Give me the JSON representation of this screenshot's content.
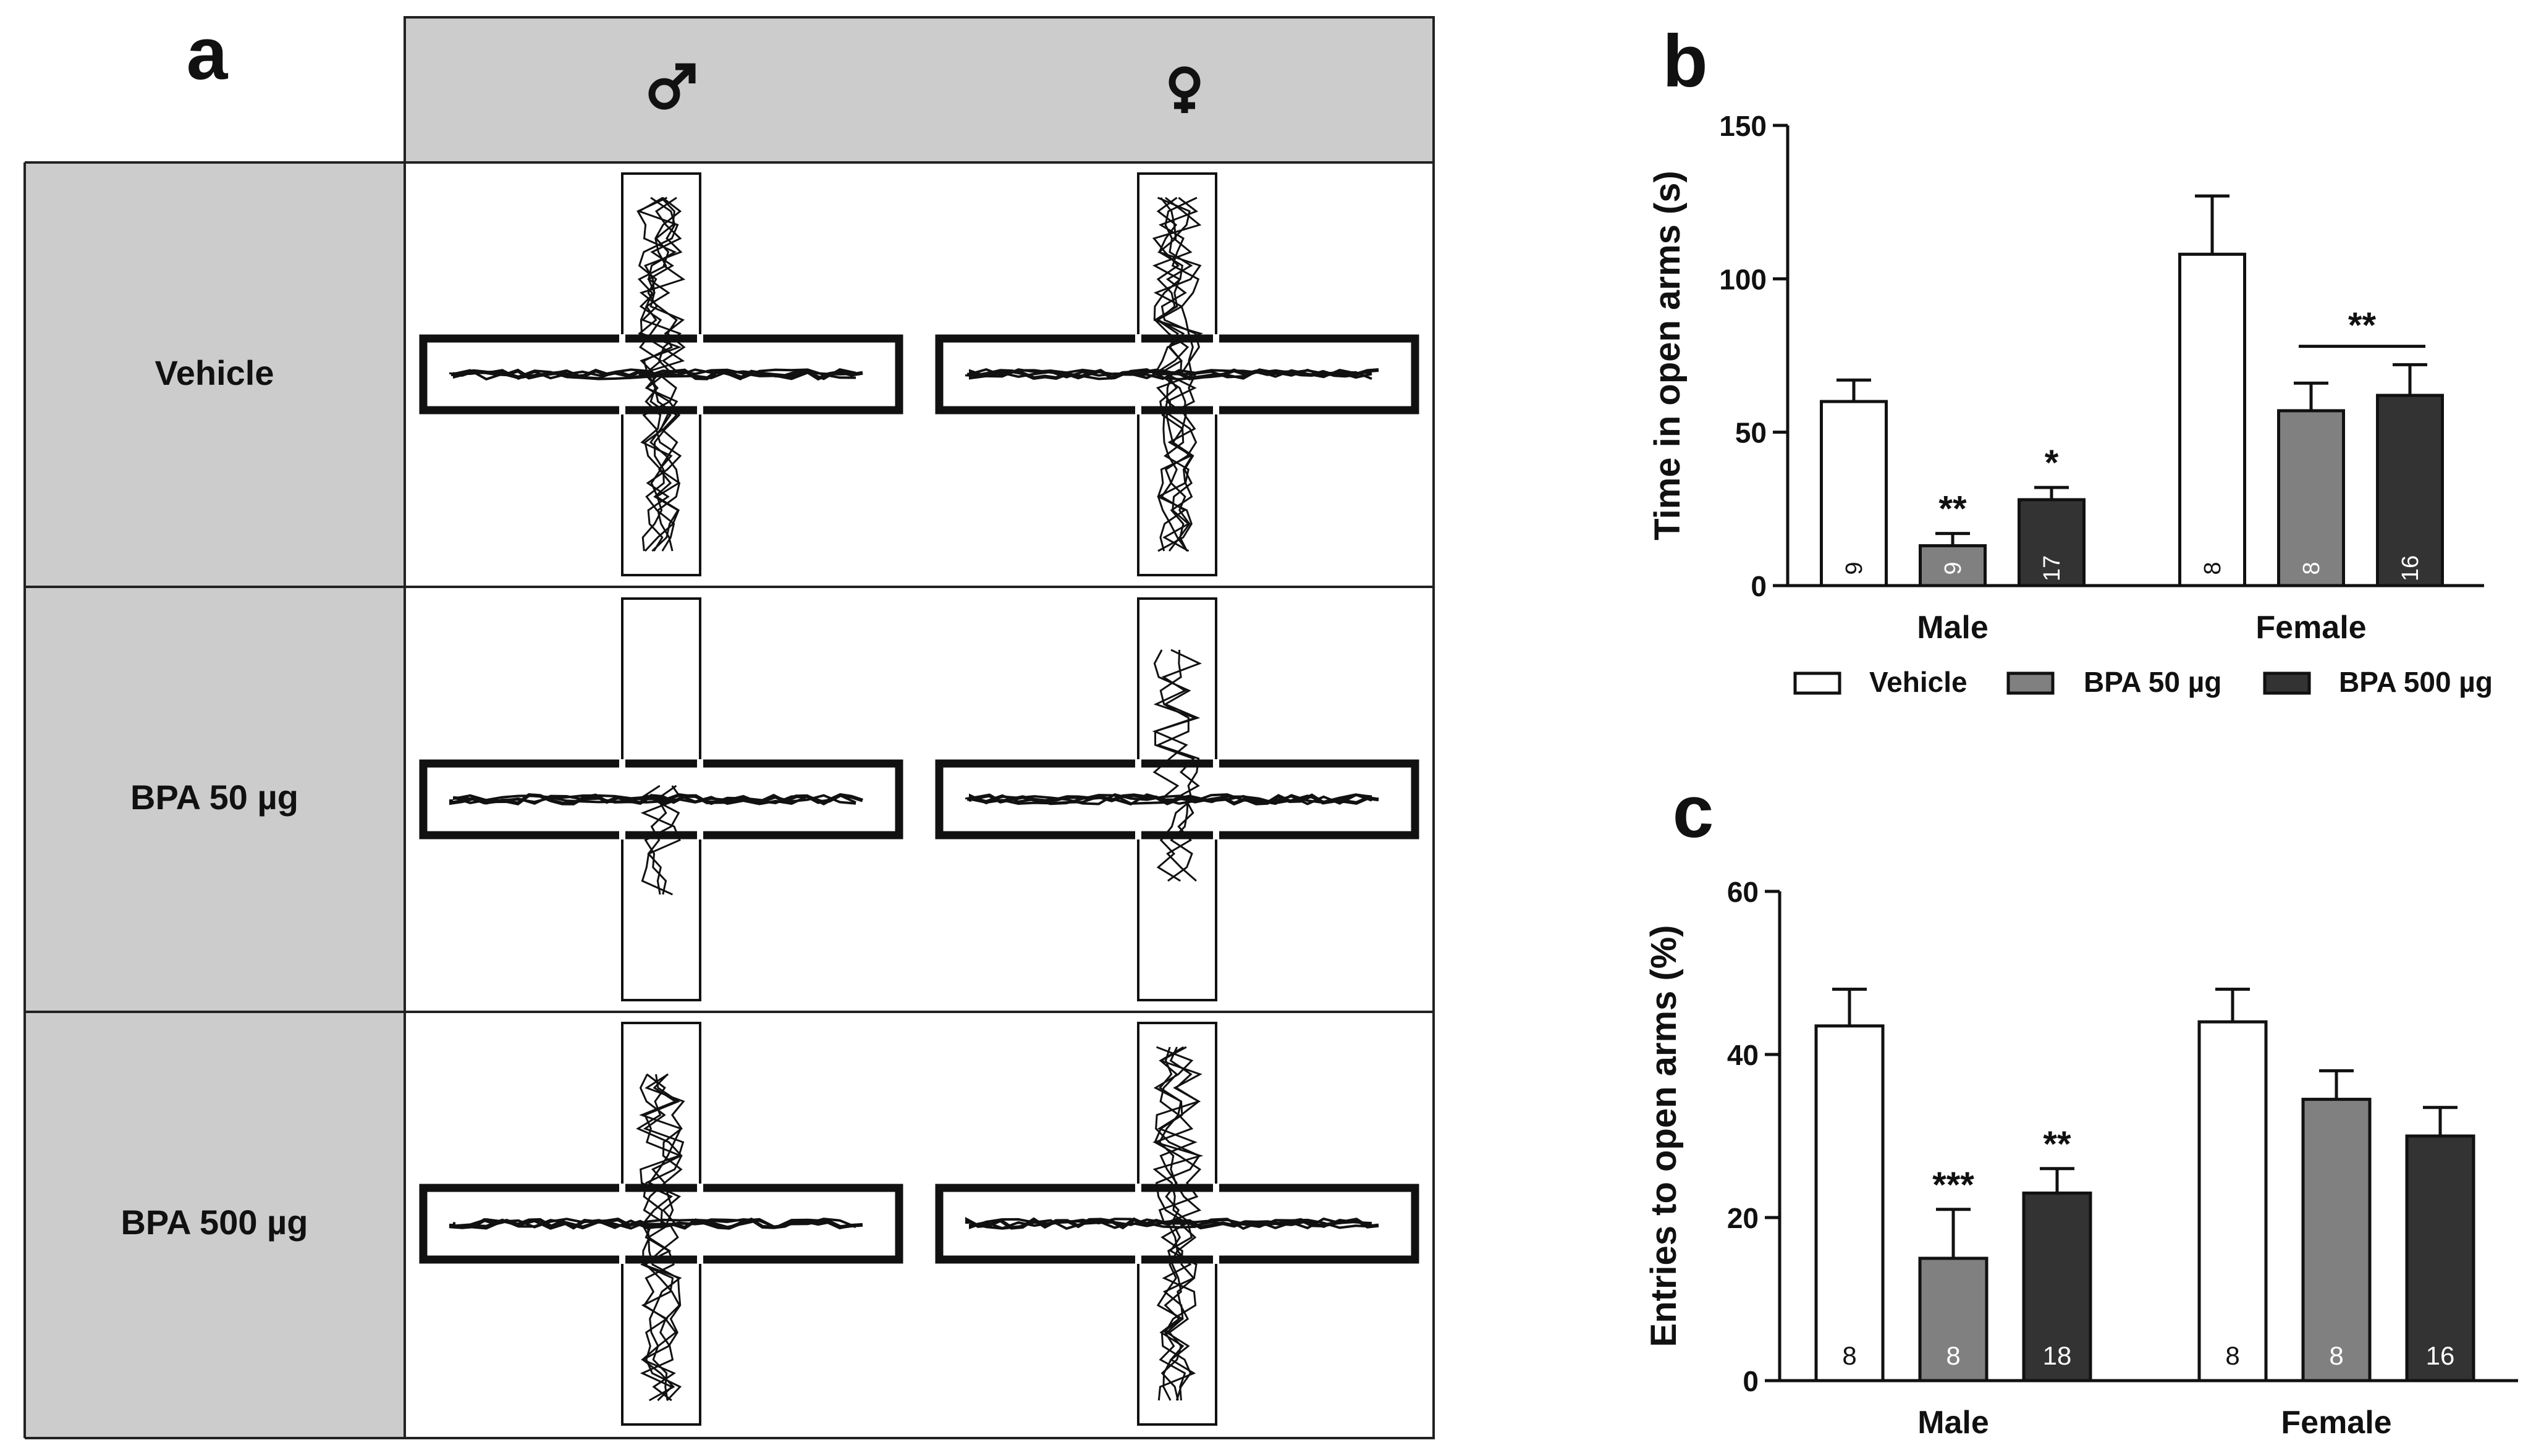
{
  "panel_a": {
    "label": "a",
    "col_headers": [
      "♂",
      "♀"
    ],
    "row_labels": [
      "Vehicle",
      "BPA 50 µg",
      "BPA 500 µg"
    ]
  },
  "legend": [
    "Vehicle",
    "BPA 50 µg",
    "BPA 500 µg"
  ],
  "colors": {
    "vehicle": "#ffffff",
    "bpa50": "#808080",
    "bpa500": "#333333",
    "header_gray": "#cccccc",
    "ink": "#111111"
  },
  "chart_data": [
    {
      "panel": "b",
      "type": "bar",
      "ylabel": "Time in open arms (s)",
      "ylim": [
        0,
        150
      ],
      "yticks": [
        0,
        50,
        100,
        150
      ],
      "groups": [
        "Male",
        "Female"
      ],
      "series": [
        {
          "name": "Vehicle",
          "values": [
            60,
            108
          ],
          "errors": [
            7,
            19
          ],
          "n": [
            "9",
            "8"
          ]
        },
        {
          "name": "BPA 50 µg",
          "values": [
            13,
            57
          ],
          "errors": [
            4,
            9
          ],
          "n": [
            "9",
            "8"
          ]
        },
        {
          "name": "BPA 500 µg",
          "values": [
            28,
            62
          ],
          "errors": [
            4,
            10
          ],
          "n": [
            "17",
            "16"
          ]
        }
      ],
      "significance": [
        {
          "group": 0,
          "series": 1,
          "text": "**"
        },
        {
          "group": 0,
          "series": 2,
          "text": "*"
        }
      ],
      "bracket": {
        "group": 1,
        "from": 1,
        "to": 2,
        "y": 78,
        "text": "**"
      },
      "n_rotated": true
    },
    {
      "panel": "c",
      "type": "bar",
      "ylabel": "Entries to open arms (%)",
      "ylim": [
        0,
        60
      ],
      "yticks": [
        0,
        20,
        40,
        60
      ],
      "groups": [
        "Male",
        "Female"
      ],
      "series": [
        {
          "name": "Vehicle",
          "values": [
            43.5,
            44
          ],
          "errors": [
            4.5,
            4
          ],
          "n": [
            "8",
            "8"
          ]
        },
        {
          "name": "BPA 50 µg",
          "values": [
            15,
            34.5
          ],
          "errors": [
            6,
            3.5
          ],
          "n": [
            "8",
            "8"
          ]
        },
        {
          "name": "BPA 500 µg",
          "values": [
            23,
            30
          ],
          "errors": [
            3,
            3.5
          ],
          "n": [
            "18",
            "16"
          ]
        }
      ],
      "significance": [
        {
          "group": 0,
          "series": 1,
          "text": "***"
        },
        {
          "group": 0,
          "series": 2,
          "text": "**"
        }
      ],
      "n_rotated": false
    }
  ]
}
